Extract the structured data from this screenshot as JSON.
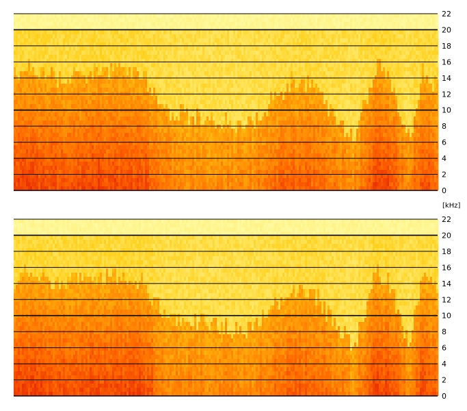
{
  "chart_data": [
    {
      "type": "heatmap",
      "title": "",
      "xlabel": "",
      "ylabel": "",
      "y_unit": "[kHz]",
      "ylim": [
        0,
        22
      ],
      "yticks": [
        "22",
        "20",
        "18",
        "16",
        "14",
        "12",
        "10",
        "8",
        "6",
        "4",
        "2",
        "0"
      ],
      "grid": true,
      "colors": {
        "low_energy": "#ffffb0",
        "mid_energy": "#ffcc10",
        "high_energy": "#ff6a00",
        "peak_energy": "#e82a00",
        "grid": "#000000"
      },
      "energy_profile": {
        "time_fraction": [
          0.0,
          0.02,
          0.1,
          0.2,
          0.3,
          0.35,
          0.45,
          0.55,
          0.65,
          0.7,
          0.8,
          0.85,
          0.88,
          0.93,
          0.96,
          1.0
        ],
        "upper_cutoff_khz": [
          14.5,
          15.5,
          14.0,
          15.0,
          14.5,
          10.0,
          9.0,
          8.0,
          13.5,
          13.0,
          6.0,
          15.5,
          14.5,
          6.0,
          14.5,
          13.0
        ],
        "loudness": [
          0.9,
          1.0,
          0.85,
          0.9,
          0.9,
          0.4,
          0.35,
          0.3,
          0.7,
          0.65,
          0.25,
          1.0,
          0.9,
          0.3,
          0.85,
          0.6
        ]
      }
    },
    {
      "type": "heatmap",
      "title": "",
      "xlabel": "",
      "ylabel": "",
      "ylim": [
        0,
        22
      ],
      "yticks": [
        "22",
        "20",
        "18",
        "16",
        "14",
        "12",
        "10",
        "8",
        "6",
        "4",
        "2",
        "0"
      ],
      "grid": true,
      "colors": {
        "low_energy": "#ffffb0",
        "mid_energy": "#ffcc10",
        "high_energy": "#ff6a00",
        "peak_energy": "#e82a00",
        "grid": "#000000"
      },
      "energy_profile": {
        "time_fraction": [
          0.0,
          0.02,
          0.1,
          0.2,
          0.3,
          0.35,
          0.45,
          0.55,
          0.65,
          0.7,
          0.8,
          0.85,
          0.88,
          0.93,
          0.96,
          1.0
        ],
        "upper_cutoff_khz": [
          14.5,
          15.5,
          14.0,
          15.0,
          14.5,
          10.0,
          9.0,
          8.0,
          13.5,
          13.0,
          6.0,
          15.5,
          14.5,
          6.0,
          14.5,
          13.0
        ],
        "loudness": [
          0.9,
          1.0,
          0.85,
          0.9,
          0.9,
          0.4,
          0.35,
          0.3,
          0.7,
          0.65,
          0.25,
          1.0,
          0.9,
          0.3,
          0.85,
          0.6
        ]
      }
    }
  ]
}
